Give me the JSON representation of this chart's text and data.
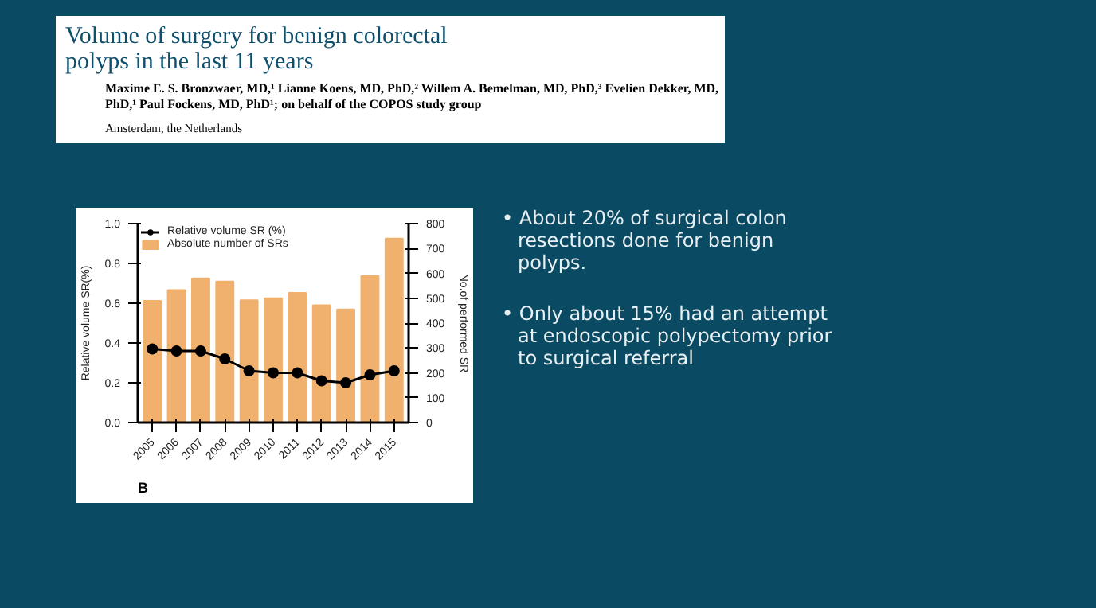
{
  "chart_data": {
    "type": "bar",
    "title": "Volume of surgery for benign colorectal polyps in the last 11 years",
    "subtitle": "Maxime E. S. Bronzwaer, MD,¹ Lianne Koens, MD, PhD,² Willem A. Bemelman, MD, PhD,³ Evelien Dekker, MD, PhD,¹ Paul Fockens, MD, PhD¹; on behalf of the COPOS study group",
    "annotations": [
      "Amsterdam, the Netherlands",
      "B",
      "• About 20% of surgical colon resections done for benign polyps.",
      "• Only about 15% had an attempt at endoscopic polypectomy prior to surgical referral"
    ],
    "categories": [
      "2005",
      "2006",
      "2007",
      "2008",
      "2009",
      "2010",
      "2011",
      "2012",
      "2013",
      "2014",
      "2015"
    ],
    "ylabel": "Relative volume SR(%)",
    "y2label": "No.of performed SR",
    "series": [
      {
        "name": "Relative volume SR (%)",
        "type": "line",
        "color": "#000000",
        "values": [
          0.37,
          0.36,
          0.36,
          0.32,
          0.26,
          0.25,
          0.25,
          0.21,
          0.2,
          0.24,
          0.26
        ]
      },
      {
        "name": "Absolute number of SRs",
        "axis": "y2",
        "color": "#f0b06e",
        "values": [
          490,
          533,
          580,
          567,
          492,
          500,
          522,
          472,
          455,
          590,
          740
        ]
      }
    ],
    "ylim": [
      0,
      1
    ],
    "yticks": [
      {
        "value": 0,
        "label": "0.0"
      },
      {
        "value": 0.2,
        "label": "0.2"
      },
      {
        "value": 0.4,
        "label": "0.4"
      },
      {
        "value": 0.6,
        "label": "0.6"
      },
      {
        "value": 0.8,
        "label": "0.8"
      },
      {
        "value": 1,
        "label": "1.0"
      }
    ],
    "y2lim": [
      0,
      800
    ],
    "y2ticks": [
      0,
      100,
      200,
      300,
      400,
      500,
      600,
      700,
      800
    ],
    "marker": "circle",
    "legend": "top left",
    "grid": false
  }
}
